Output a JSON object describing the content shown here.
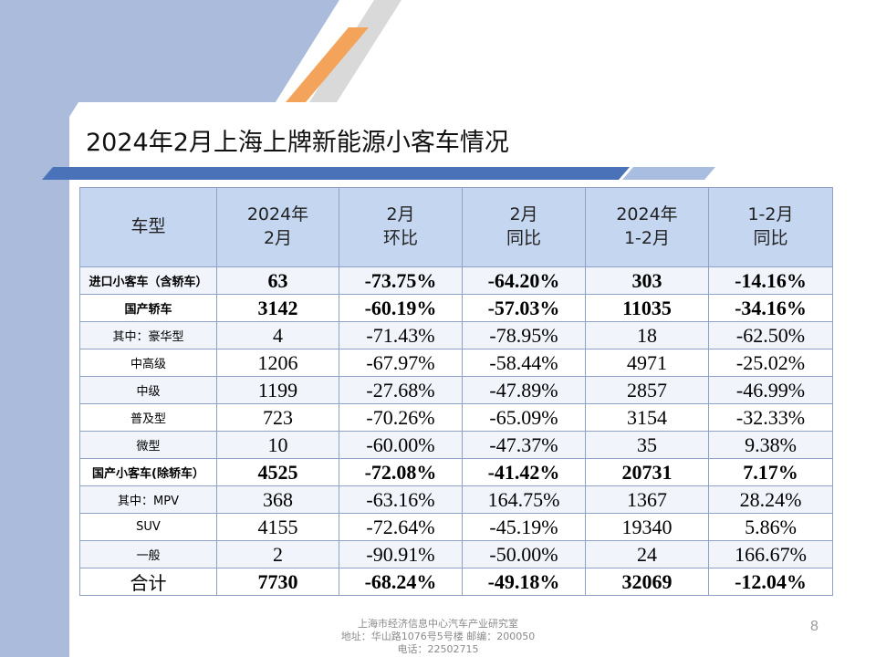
{
  "colors": {
    "accent_orange": "#f4a35a",
    "header_fill": "#c5d6f0",
    "bar_blue": "#4a72b8",
    "side_panel": "#aabbdc"
  },
  "slide": {
    "title": "2024年2月上海上牌新能源小客车情况",
    "page_number": "8"
  },
  "table": {
    "headers": [
      [
        "车型"
      ],
      [
        "2024年",
        "2月"
      ],
      [
        "2月",
        "环比"
      ],
      [
        "2月",
        "同比"
      ],
      [
        "2024年",
        "1-2月"
      ],
      [
        "1-2月",
        "同比"
      ]
    ],
    "rows": [
      {
        "label": "进口小客车（含轿车）",
        "bold": true,
        "cells": [
          "63",
          "-73.75%",
          "-64.20%",
          "303",
          "-14.16%"
        ]
      },
      {
        "label": "国产轿车",
        "bold": true,
        "cells": [
          "3142",
          "-60.19%",
          "-57.03%",
          "11035",
          "-34.16%"
        ]
      },
      {
        "label": "其中：豪华型",
        "bold": false,
        "cells": [
          "4",
          "-71.43%",
          "-78.95%",
          "18",
          "-62.50%"
        ]
      },
      {
        "label": "中高级",
        "bold": false,
        "cells": [
          "1206",
          "-67.97%",
          "-58.44%",
          "4971",
          "-25.02%"
        ]
      },
      {
        "label": "中级",
        "bold": false,
        "cells": [
          "1199",
          "-27.68%",
          "-47.89%",
          "2857",
          "-46.99%"
        ]
      },
      {
        "label": "普及型",
        "bold": false,
        "cells": [
          "723",
          "-70.26%",
          "-65.09%",
          "3154",
          "-32.33%"
        ]
      },
      {
        "label": "微型",
        "bold": false,
        "cells": [
          "10",
          "-60.00%",
          "-47.37%",
          "35",
          "9.38%"
        ]
      },
      {
        "label": "国产小客车(除轿车）",
        "bold": true,
        "cells": [
          "4525",
          "-72.08%",
          "-41.42%",
          "20731",
          "7.17%"
        ]
      },
      {
        "label": "其中：MPV",
        "bold": false,
        "cells": [
          "368",
          "-63.16%",
          "164.75%",
          "1367",
          "28.24%"
        ]
      },
      {
        "label": "SUV",
        "bold": false,
        "cells": [
          "4155",
          "-72.64%",
          "-45.19%",
          "19340",
          "5.86%"
        ]
      },
      {
        "label": "一般",
        "bold": false,
        "cells": [
          "2",
          "-90.91%",
          "-50.00%",
          "24",
          "166.67%"
        ]
      },
      {
        "label": "合计",
        "bold": true,
        "total": true,
        "cells": [
          "7730",
          "-68.24%",
          "-49.18%",
          "32069",
          "-12.04%"
        ]
      }
    ]
  },
  "footer": {
    "line1": "上海市经济信息中心汽车产业研究室",
    "line2": "地址：华山路1076号5号楼    邮编：200050",
    "line3": "电话：22502715"
  }
}
